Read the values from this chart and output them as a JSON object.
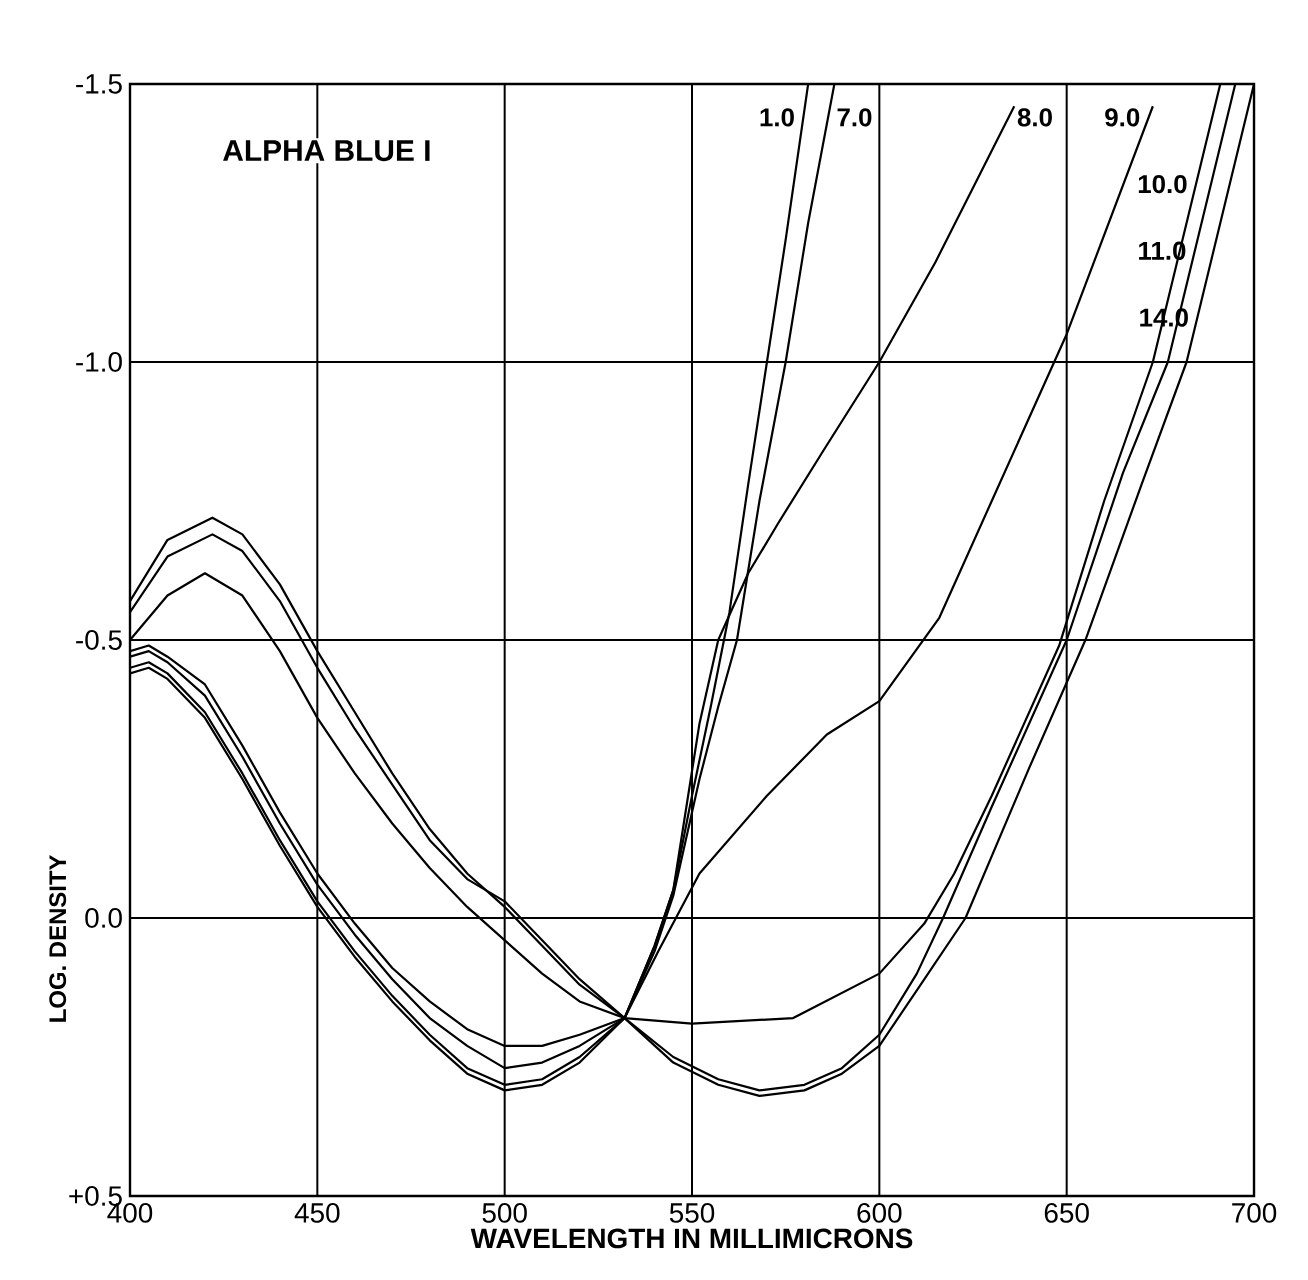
{
  "chart_data": {
    "type": "line",
    "xlabel": "WAVELENGTH IN MILLIMICRONS",
    "ylabel": "LOG. DENSITY",
    "annotations": [
      "ALPHA BLUE I"
    ],
    "xlim": [
      400,
      700
    ],
    "ylim": [
      0.5,
      -1.5
    ],
    "xticks": [
      400,
      450,
      500,
      550,
      600,
      650,
      700
    ],
    "yticks": [
      {
        "value": -1.5,
        "label": "-1.5"
      },
      {
        "value": -1.0,
        "label": "-1.0"
      },
      {
        "value": -0.5,
        "label": "-0.5"
      },
      {
        "value": 0.0,
        "label": "0.0"
      },
      {
        "value": 0.5,
        "label": "+0.5"
      }
    ],
    "grid": true,
    "marker": "none",
    "line_style": "solid",
    "series": [
      {
        "name": "1.0",
        "color": "#000000",
        "x": [
          400,
          405,
          410,
          420,
          430,
          440,
          450,
          460,
          470,
          480,
          490,
          500,
          510,
          520,
          532,
          540,
          545,
          550,
          555,
          560,
          565,
          570,
          575,
          581
        ],
        "values": [
          -0.44,
          -0.45,
          -0.43,
          -0.36,
          -0.25,
          -0.13,
          -0.02,
          0.07,
          0.15,
          0.22,
          0.28,
          0.31,
          0.3,
          0.26,
          0.18,
          0.05,
          -0.05,
          -0.22,
          -0.38,
          -0.55,
          -0.78,
          -1.0,
          -1.22,
          -1.5
        ]
      },
      {
        "name": "7.0",
        "color": "#000000",
        "x": [
          400,
          405,
          410,
          420,
          430,
          440,
          450,
          460,
          470,
          480,
          490,
          500,
          510,
          520,
          532,
          540,
          545,
          552,
          557,
          562,
          568,
          575,
          581,
          588
        ],
        "values": [
          -0.45,
          -0.46,
          -0.44,
          -0.37,
          -0.26,
          -0.14,
          -0.03,
          0.06,
          0.14,
          0.21,
          0.27,
          0.3,
          0.29,
          0.25,
          0.18,
          0.06,
          -0.04,
          -0.25,
          -0.38,
          -0.5,
          -0.75,
          -1.0,
          -1.25,
          -1.5
        ]
      },
      {
        "name": "8.0",
        "color": "#000000",
        "x": [
          400,
          405,
          410,
          420,
          430,
          440,
          450,
          460,
          470,
          480,
          490,
          500,
          510,
          520,
          532,
          540,
          545,
          552,
          557,
          565,
          573,
          585,
          600,
          615,
          636
        ],
        "values": [
          -0.47,
          -0.48,
          -0.46,
          -0.4,
          -0.29,
          -0.17,
          -0.06,
          0.03,
          0.11,
          0.18,
          0.23,
          0.27,
          0.26,
          0.23,
          0.18,
          0.05,
          -0.05,
          -0.35,
          -0.5,
          -0.62,
          -0.71,
          -0.84,
          -1.0,
          -1.18,
          -1.46
        ]
      },
      {
        "name": "9.0",
        "color": "#000000",
        "x": [
          400,
          405,
          410,
          420,
          430,
          440,
          450,
          460,
          470,
          480,
          490,
          500,
          510,
          520,
          532,
          541,
          552,
          570,
          586,
          600,
          616,
          630,
          650,
          673
        ],
        "values": [
          -0.48,
          -0.49,
          -0.47,
          -0.42,
          -0.31,
          -0.19,
          -0.08,
          0.01,
          0.09,
          0.15,
          0.2,
          0.23,
          0.23,
          0.21,
          0.18,
          0.06,
          -0.08,
          -0.22,
          -0.33,
          -0.39,
          -0.54,
          -0.75,
          -1.05,
          -1.46
        ]
      },
      {
        "name": "10.0",
        "color": "#000000",
        "x": [
          400,
          410,
          420,
          430,
          440,
          450,
          460,
          470,
          480,
          490,
          500,
          510,
          520,
          532,
          550,
          577,
          600,
          612,
          620,
          630,
          648,
          660,
          673,
          691
        ],
        "values": [
          -0.5,
          -0.58,
          -0.62,
          -0.58,
          -0.48,
          -0.36,
          -0.26,
          -0.17,
          -0.09,
          -0.02,
          0.04,
          0.1,
          0.15,
          0.18,
          0.19,
          0.18,
          0.1,
          0.01,
          -0.08,
          -0.22,
          -0.49,
          -0.75,
          -1.0,
          -1.5
        ]
      },
      {
        "name": "11.0",
        "color": "#000000",
        "x": [
          400,
          410,
          422,
          430,
          440,
          450,
          460,
          470,
          480,
          490,
          500,
          510,
          520,
          532,
          545,
          557,
          568,
          580,
          590,
          600,
          610,
          617,
          630,
          650,
          665,
          677,
          695
        ],
        "values": [
          -0.57,
          -0.68,
          -0.72,
          -0.69,
          -0.6,
          -0.48,
          -0.37,
          -0.26,
          -0.16,
          -0.08,
          -0.02,
          0.05,
          0.12,
          0.18,
          0.25,
          0.29,
          0.31,
          0.3,
          0.27,
          0.21,
          0.1,
          0.0,
          -0.2,
          -0.5,
          -0.8,
          -1.0,
          -1.5
        ]
      },
      {
        "name": "14.0",
        "color": "#000000",
        "x": [
          400,
          410,
          422,
          430,
          440,
          450,
          460,
          470,
          480,
          490,
          500,
          510,
          520,
          532,
          545,
          557,
          568,
          580,
          590,
          600,
          610,
          623,
          640,
          655,
          670,
          682,
          700
        ],
        "values": [
          -0.55,
          -0.65,
          -0.69,
          -0.66,
          -0.57,
          -0.45,
          -0.34,
          -0.24,
          -0.14,
          -0.07,
          -0.03,
          0.04,
          0.11,
          0.18,
          0.26,
          0.3,
          0.32,
          0.31,
          0.28,
          0.23,
          0.13,
          0.0,
          -0.27,
          -0.5,
          -0.78,
          -1.0,
          -1.5
        ]
      }
    ]
  }
}
